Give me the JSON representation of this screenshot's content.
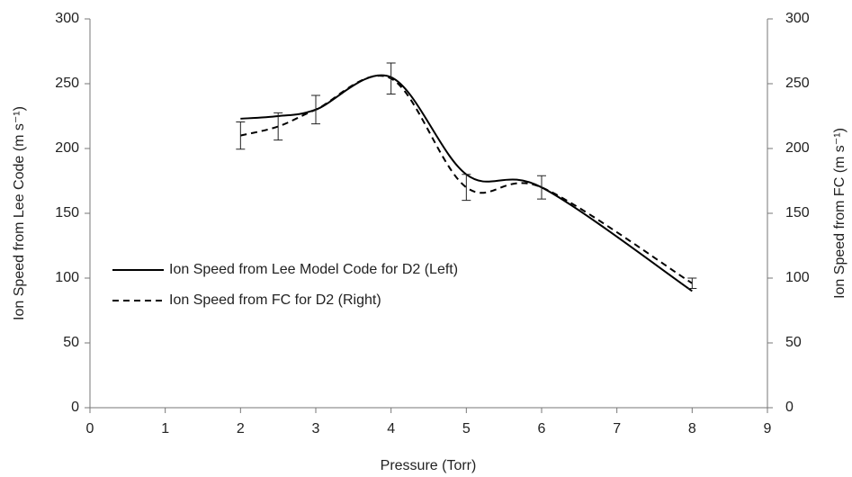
{
  "chart_data": {
    "type": "line",
    "x_label": "Pressure (Torr)",
    "y_label": "Ion Speed  from Lee Code (m s⁻¹)",
    "y2_label": "Ion Speed  from FC (m s⁻¹)",
    "x": [
      2,
      2.5,
      3,
      4,
      5,
      6,
      8
    ],
    "series": [
      {
        "name": "Ion Speed from Lee Model Code for D2 (Left)",
        "color": "#000000",
        "dash": "solid",
        "axis": "y",
        "values": [
          223,
          225,
          230,
          255,
          180,
          170,
          90
        ]
      },
      {
        "name": "Ion Speed from FC for D2 (Right)",
        "color": "#000000",
        "dash": "dashed",
        "axis": "y2",
        "values": [
          210,
          217,
          230,
          254,
          170,
          170,
          96
        ],
        "errors": [
          10.5,
          10.5,
          11,
          12,
          10,
          9,
          4
        ]
      }
    ],
    "xlim": [
      0,
      9
    ],
    "xticks": [
      0,
      1,
      2,
      3,
      4,
      5,
      6,
      7,
      8,
      9
    ],
    "ylim": [
      0,
      300
    ],
    "yticks": [
      0,
      50,
      100,
      150,
      200,
      250,
      300
    ],
    "y2lim": [
      0,
      300
    ],
    "y2ticks": [
      0,
      50,
      100,
      150,
      200,
      250,
      300
    ],
    "legend": "lower left"
  }
}
